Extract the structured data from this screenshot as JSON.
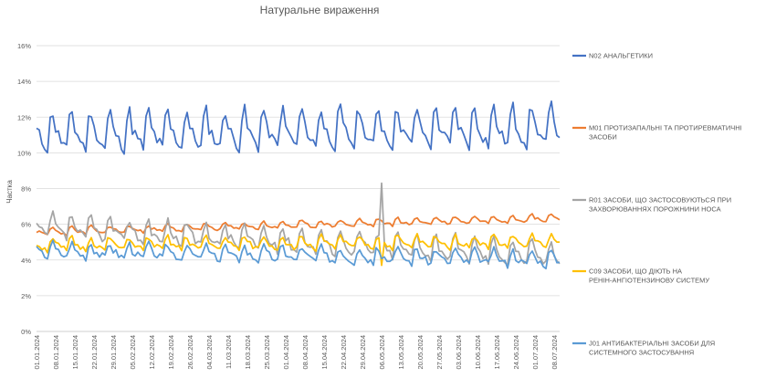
{
  "chart_data": {
    "type": "line",
    "title": "Натуральне вираження",
    "xlabel": "",
    "ylabel": "Частка",
    "ylim": [
      0,
      16
    ],
    "y_ticks": [
      "0%",
      "2%",
      "4%",
      "6%",
      "8%",
      "10%",
      "12%",
      "14%",
      "16%"
    ],
    "grid": "horizontal",
    "legend_position": "right",
    "x_ticks": [
      "01.01.2024",
      "08.01.2024",
      "15.01.2024",
      "22.01.2024",
      "29.01.2024",
      "05.02.2024",
      "12.02.2024",
      "19.02.2024",
      "26.02.2024",
      "04.03.2024",
      "11.03.2024",
      "18.03.2024",
      "25.03.2024",
      "01.04.2024",
      "08.04.2024",
      "15.04.2024",
      "22.04.2024",
      "29.04.2024",
      "06.05.2024",
      "13.05.2024",
      "20.05.2024",
      "27.05.2024",
      "03.06.2024",
      "10.06.2024",
      "17.06.2024",
      "24.06.2024",
      "01.07.2024",
      "08.07.2024"
    ],
    "x_range": [
      "2024-01-01",
      "2024-07-10"
    ],
    "series": [
      {
        "name": "N02 АНАЛЬГЕТИКИ",
        "color": "#4472C4",
        "base": 11.0,
        "trend": 0.3,
        "amp": 1.8,
        "noise": 0.35,
        "seed": 11
      },
      {
        "name": "M01 ПРОТИЗАПАЛЬНІ ТА ПРОТИРЕВМАТИЧНІ ЗАСОБИ",
        "color": "#ED7D31",
        "base": 5.55,
        "trend": 0.8,
        "amp": 0.35,
        "noise": 0.08,
        "seed": 23
      },
      {
        "name": "R01 ЗАСОБИ, ЩО ЗАСТОСОВУЮТЬСЯ ПРИ ЗАХВОРЮВАННЯХ ПОРОЖНИНИ НОСА",
        "color": "#A5A5A5",
        "base": 5.8,
        "trend": -1.6,
        "amp": 1.1,
        "noise": 0.25,
        "seed": 37
      },
      {
        "name": "C09 ЗАСОБИ, ЩО ДІЮТЬ НА РЕНІН-АНГІОТЕНЗИНОВУ СИСТЕМУ",
        "color": "#FFC000",
        "base": 4.8,
        "trend": 0.2,
        "amp": 0.6,
        "noise": 0.15,
        "seed": 51
      },
      {
        "name": "J01 АНТИБАКТЕРІАЛЬНІ ЗАСОБИ ДЛЯ СИСТЕМНОГО ЗАСТОСУВАННЯ",
        "color": "#5B9BD5",
        "base": 4.5,
        "trend": -0.5,
        "amp": 0.7,
        "noise": 0.2,
        "seed": 67
      }
    ]
  }
}
